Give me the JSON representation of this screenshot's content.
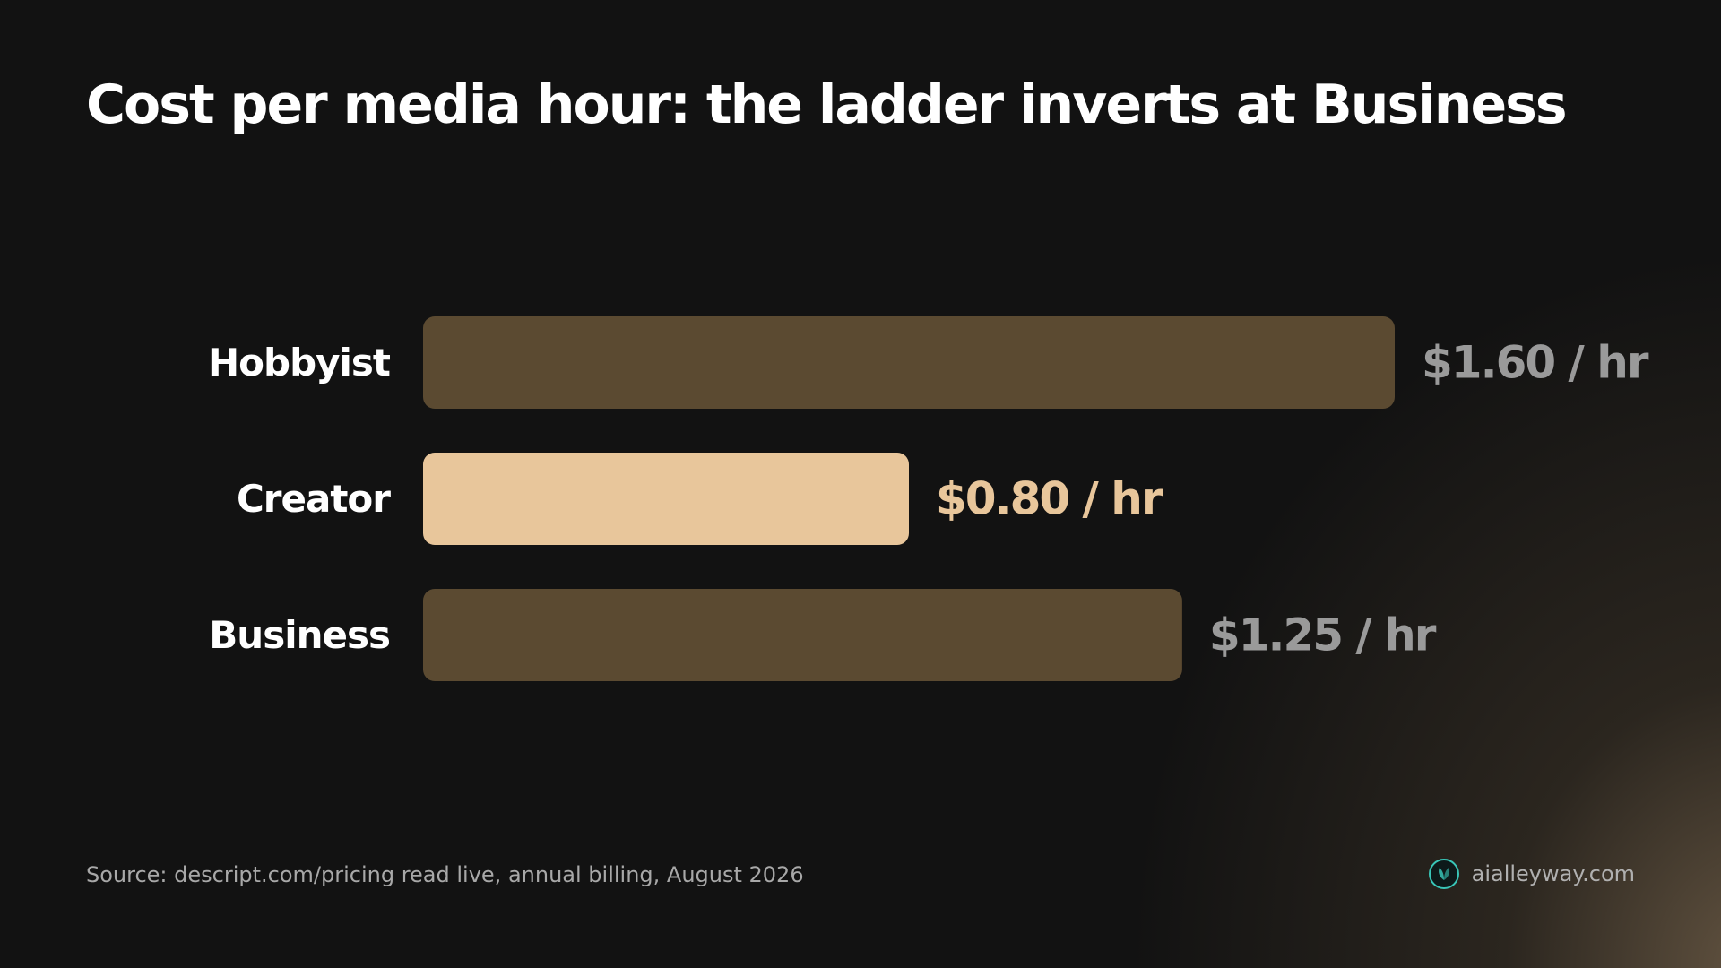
{
  "chart_data": {
    "type": "bar",
    "orientation": "horizontal",
    "title": "Cost per media hour: the ladder inverts at Business",
    "categories": [
      "Hobbyist",
      "Creator",
      "Business"
    ],
    "values": [
      1.6,
      0.8,
      1.25
    ],
    "value_labels": [
      "$1.60 / hr",
      "$0.80 / hr",
      "$1.25 / hr"
    ],
    "highlighted": [
      false,
      true,
      false
    ],
    "xlim": [
      0,
      1.6
    ],
    "grid": false,
    "legend": "none",
    "colors": {
      "bar": "#5b4a31",
      "bar_highlight": "#e8c69b",
      "value_text": "#9a9a9a",
      "value_text_highlight": "#e8c69b",
      "category_text": "#ffffff"
    }
  },
  "footer": {
    "source": "Source: descript.com/pricing read live, annual billing, August 2026",
    "brand": "aialleyway.com",
    "brand_icon": "leaf-logo-icon"
  }
}
